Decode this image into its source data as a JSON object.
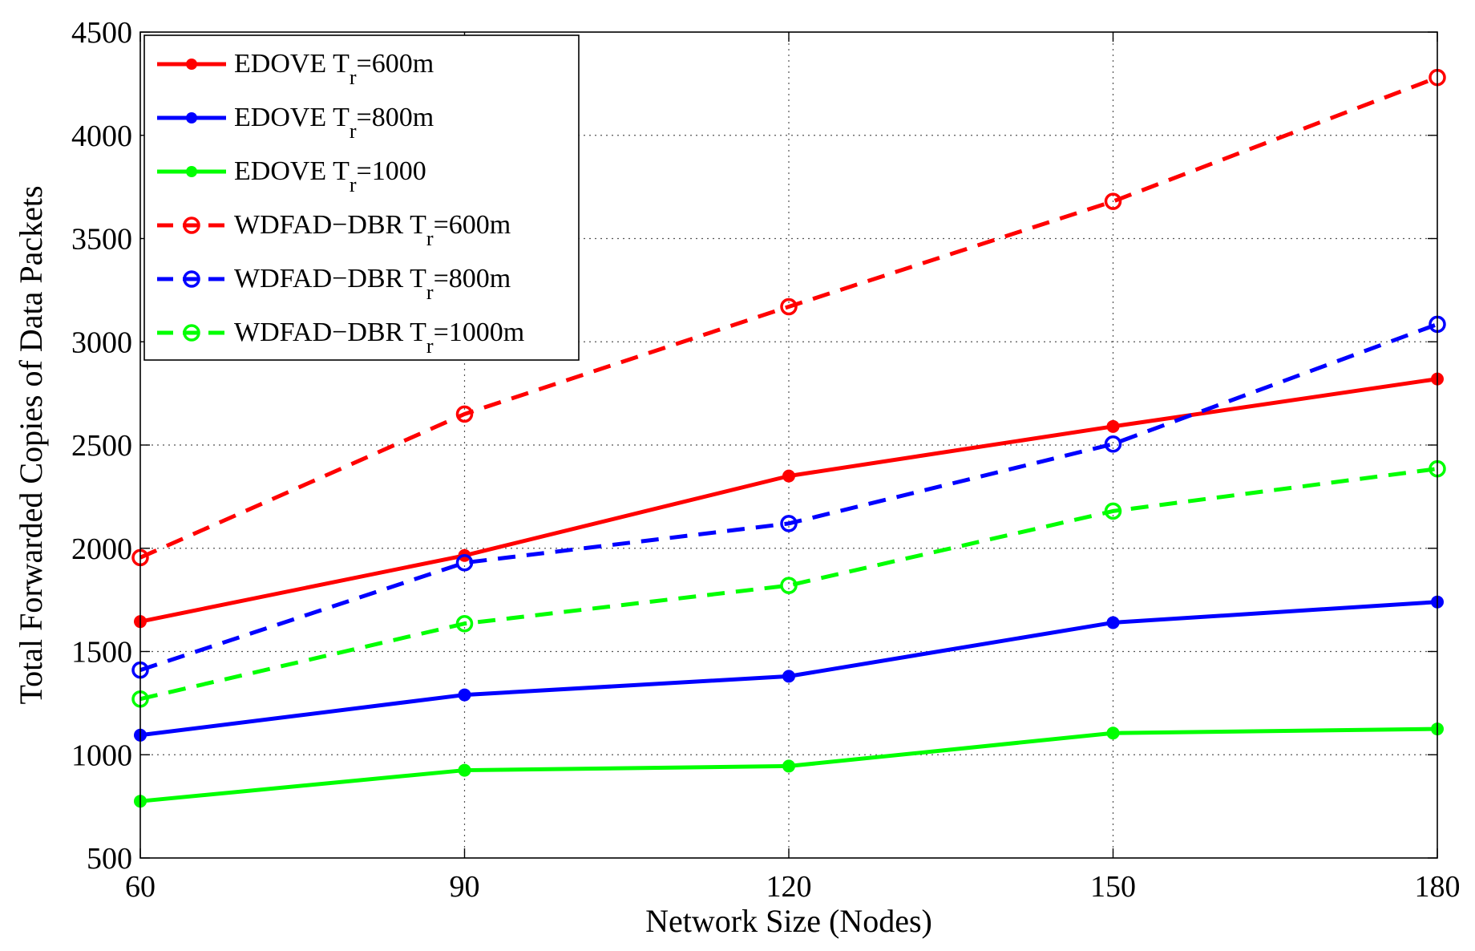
{
  "chart_data": {
    "type": "line",
    "title": "",
    "xlabel": "Network Size (Nodes)",
    "ylabel": "Total Forwarded Copies of Data Packets",
    "x": [
      60,
      90,
      120,
      150,
      180
    ],
    "xlim": [
      60,
      180
    ],
    "ylim": [
      500,
      4500
    ],
    "xticks": [
      "60",
      "90",
      "120",
      "150",
      "180"
    ],
    "yticks": [
      "500",
      "1000",
      "1500",
      "2000",
      "2500",
      "3000",
      "3500",
      "4000",
      "4500"
    ],
    "grid": true,
    "legend_position": "top-left",
    "series": [
      {
        "name": "EDOVE T_r=600m",
        "legend_main": "EDOVE T",
        "legend_sub": "r",
        "legend_tail": "=600m",
        "color": "#ff0000",
        "style": "solid",
        "marker": "filled-circle",
        "values": [
          1645,
          1965,
          2350,
          2590,
          2820
        ]
      },
      {
        "name": "EDOVE T_r=800m",
        "legend_main": "EDOVE T",
        "legend_sub": "r",
        "legend_tail": "=800m",
        "color": "#0000ff",
        "style": "solid",
        "marker": "filled-circle",
        "values": [
          1095,
          1290,
          1380,
          1640,
          1740
        ]
      },
      {
        "name": "EDOVE T_r=1000",
        "legend_main": "EDOVE T",
        "legend_sub": "r",
        "legend_tail": "=1000",
        "color": "#00ff00",
        "style": "solid",
        "marker": "filled-circle",
        "values": [
          775,
          925,
          945,
          1105,
          1125
        ]
      },
      {
        "name": "WDFAD-DBR T_r=600m",
        "legend_main": "WDFAD−DBR T",
        "legend_sub": "r",
        "legend_tail": "=600m",
        "color": "#ff0000",
        "style": "dashed",
        "marker": "open-circle",
        "values": [
          1955,
          2650,
          3170,
          3680,
          4280
        ]
      },
      {
        "name": "WDFAD-DBR T_r=800m",
        "legend_main": "WDFAD−DBR T",
        "legend_sub": "r",
        "legend_tail": "=800m",
        "color": "#0000ff",
        "style": "dashed",
        "marker": "open-circle",
        "values": [
          1410,
          1930,
          2120,
          2505,
          3085
        ]
      },
      {
        "name": "WDFAD-DBR T_r=1000m",
        "legend_main": "WDFAD−DBR T",
        "legend_sub": "r",
        "legend_tail": "=1000m",
        "color": "#00ff00",
        "style": "dashed",
        "marker": "open-circle",
        "values": [
          1270,
          1635,
          1820,
          2180,
          2385
        ]
      }
    ]
  }
}
